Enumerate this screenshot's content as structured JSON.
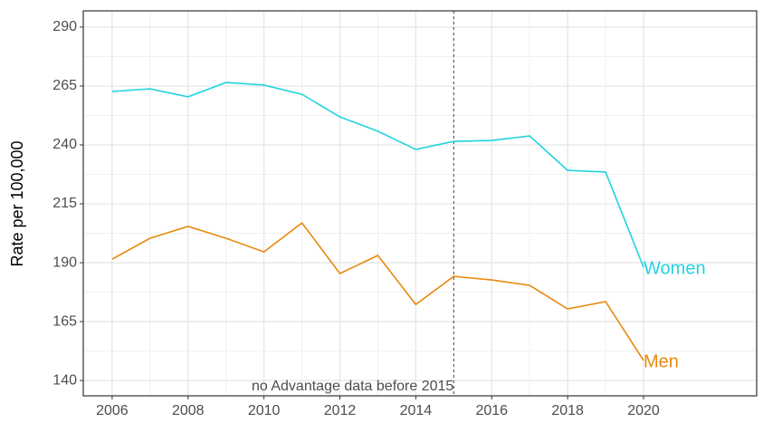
{
  "chart_data": {
    "type": "line",
    "y_label": "Rate per 100,000",
    "x": [
      2006,
      2007,
      2008,
      2009,
      2010,
      2011,
      2012,
      2013,
      2014,
      2015,
      2016,
      2017,
      2018,
      2019,
      2020
    ],
    "series": [
      {
        "name": "Women",
        "color": "#22d3e0",
        "values": [
          262.7,
          263.8,
          260.4,
          266.5,
          265.4,
          261.5,
          251.9,
          245.8,
          238.1,
          241.5,
          241.9,
          243.8,
          229.2,
          228.5,
          188.1
        ]
      },
      {
        "name": "Men",
        "color": "#e8890c",
        "values": [
          191.5,
          200.4,
          205.4,
          200.4,
          194.6,
          206.9,
          185.4,
          193.1,
          172.3,
          184.2,
          182.7,
          180.4,
          170.4,
          173.5,
          148.5
        ]
      }
    ],
    "xlim": [
      2005.24,
      2022.98
    ],
    "ylim": [
      133.5,
      296.9
    ],
    "xticks": [
      2006,
      2008,
      2010,
      2012,
      2014,
      2016,
      2018,
      2020
    ],
    "yticks": [
      140,
      165,
      190,
      215,
      240,
      265,
      290
    ],
    "grid": true,
    "vline": 2015,
    "annotation": "no Advantage data before 2015"
  }
}
